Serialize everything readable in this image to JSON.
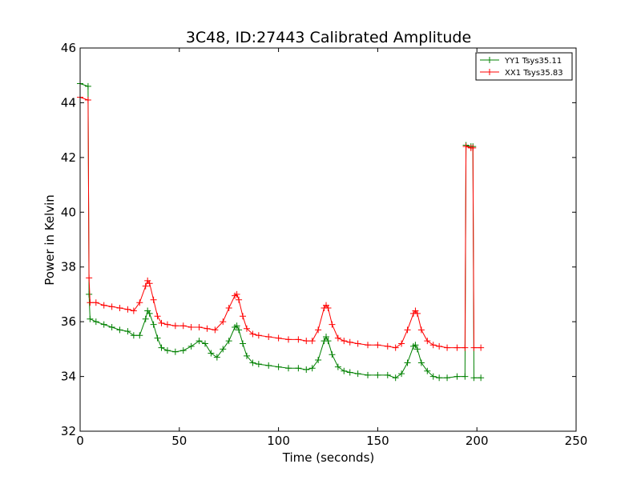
{
  "chart_data": {
    "type": "line",
    "title": "3C48, ID:27443 Calibrated Amplitude",
    "xlabel": "Time (seconds)",
    "ylabel": "Power in Kelvin",
    "xlim": [
      0,
      250
    ],
    "ylim": [
      32,
      46
    ],
    "xticks": [
      0,
      50,
      100,
      150,
      200,
      250
    ],
    "yticks": [
      32,
      34,
      36,
      38,
      40,
      42,
      44,
      46
    ],
    "grid": false,
    "legend_position": "top-right",
    "series": [
      {
        "name": "YY1 Tsys35.11",
        "color": "#008000",
        "marker": "+",
        "x": [
          0,
          4,
          4.5,
          5,
          8,
          12,
          16,
          20,
          24,
          27,
          30,
          33,
          34,
          35,
          37,
          39,
          41,
          44,
          48,
          52,
          56,
          60,
          63,
          66,
          69,
          72,
          75,
          78,
          79,
          80,
          82,
          84,
          87,
          90,
          95,
          100,
          105,
          110,
          114,
          117,
          120,
          123,
          124,
          125,
          127,
          130,
          133,
          136,
          140,
          145,
          150,
          155,
          159,
          162,
          165,
          168,
          169,
          170,
          172,
          175,
          178,
          181,
          185,
          190,
          194,
          194.5,
          197,
          198,
          198.5,
          202
        ],
        "y": [
          44.7,
          44.6,
          37.0,
          36.1,
          36.0,
          35.9,
          35.8,
          35.7,
          35.65,
          35.5,
          35.5,
          36.1,
          36.4,
          36.3,
          35.9,
          35.4,
          35.05,
          34.95,
          34.9,
          34.95,
          35.1,
          35.3,
          35.2,
          34.85,
          34.7,
          35.0,
          35.3,
          35.8,
          35.85,
          35.7,
          35.2,
          34.75,
          34.5,
          34.45,
          34.4,
          34.35,
          34.3,
          34.3,
          34.25,
          34.3,
          34.6,
          35.3,
          35.45,
          35.3,
          34.8,
          34.35,
          34.2,
          34.15,
          34.1,
          34.05,
          34.05,
          34.05,
          33.95,
          34.1,
          34.5,
          35.1,
          35.15,
          35.0,
          34.5,
          34.2,
          34.0,
          33.95,
          33.95,
          34.0,
          34.0,
          42.45,
          42.4,
          42.4,
          33.95,
          33.95
        ]
      },
      {
        "name": "XX1 Tsys35.83",
        "color": "#ff0000",
        "marker": "+",
        "x": [
          0,
          4,
          4.5,
          5,
          8,
          12,
          16,
          20,
          24,
          27,
          30,
          33,
          34,
          35,
          37,
          39,
          41,
          44,
          48,
          52,
          56,
          60,
          64,
          68,
          72,
          75,
          78,
          79,
          80,
          82,
          84,
          87,
          90,
          95,
          100,
          105,
          110,
          114,
          117,
          120,
          123,
          124,
          125,
          127,
          130,
          133,
          136,
          140,
          145,
          150,
          155,
          159,
          162,
          165,
          168,
          169,
          170,
          172,
          175,
          178,
          181,
          185,
          190,
          194,
          194.5,
          197,
          198,
          198.5,
          202
        ],
        "y": [
          44.2,
          44.1,
          37.6,
          36.7,
          36.7,
          36.6,
          36.55,
          36.5,
          36.45,
          36.4,
          36.7,
          37.3,
          37.5,
          37.4,
          36.8,
          36.2,
          35.95,
          35.9,
          35.85,
          35.85,
          35.8,
          35.8,
          35.75,
          35.7,
          36.0,
          36.5,
          36.95,
          37.0,
          36.8,
          36.2,
          35.75,
          35.55,
          35.5,
          35.45,
          35.4,
          35.35,
          35.35,
          35.3,
          35.3,
          35.7,
          36.5,
          36.6,
          36.5,
          35.9,
          35.4,
          35.3,
          35.25,
          35.2,
          35.15,
          35.15,
          35.1,
          35.05,
          35.2,
          35.7,
          36.3,
          36.4,
          36.3,
          35.7,
          35.3,
          35.15,
          35.1,
          35.05,
          35.05,
          35.05,
          42.4,
          42.35,
          42.35,
          35.05,
          35.05
        ]
      }
    ]
  }
}
